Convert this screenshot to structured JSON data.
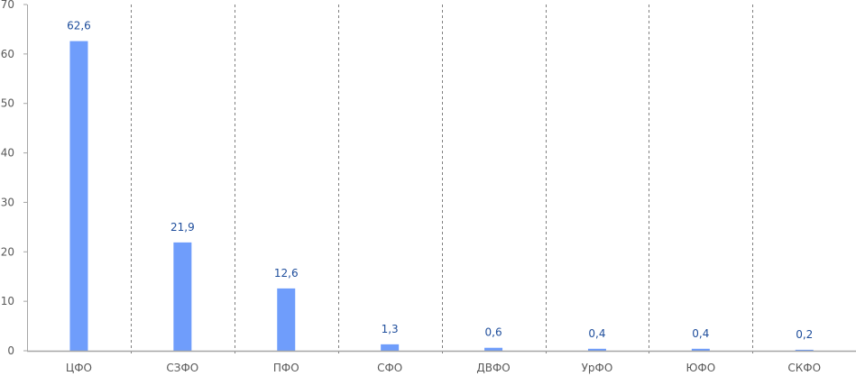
{
  "chart_data": {
    "type": "bar",
    "categories": [
      "ЦФО",
      "СЗФО",
      "ПФО",
      "СФО",
      "ДВФО",
      "УрФО",
      "ЮФО",
      "СКФО"
    ],
    "values": [
      62.6,
      21.9,
      12.6,
      1.3,
      0.6,
      0.4,
      0.4,
      0.2
    ],
    "data_labels": [
      "62,6",
      "21,9",
      "12,6",
      "1,3",
      "0,6",
      "0,4",
      "0,4",
      "0,2"
    ],
    "yticks": [
      "0",
      "10",
      "20",
      "30",
      "40",
      "50",
      "60",
      "70"
    ],
    "ylim": [
      0,
      70
    ],
    "title": "",
    "xlabel": "",
    "ylabel": "",
    "grid": "vertical dashed category separators",
    "legend": "none",
    "colors": {
      "bar": "#6f9dfb",
      "label": "#1f4e9c",
      "axis": "#a6a6a6",
      "text": "#595959"
    }
  }
}
